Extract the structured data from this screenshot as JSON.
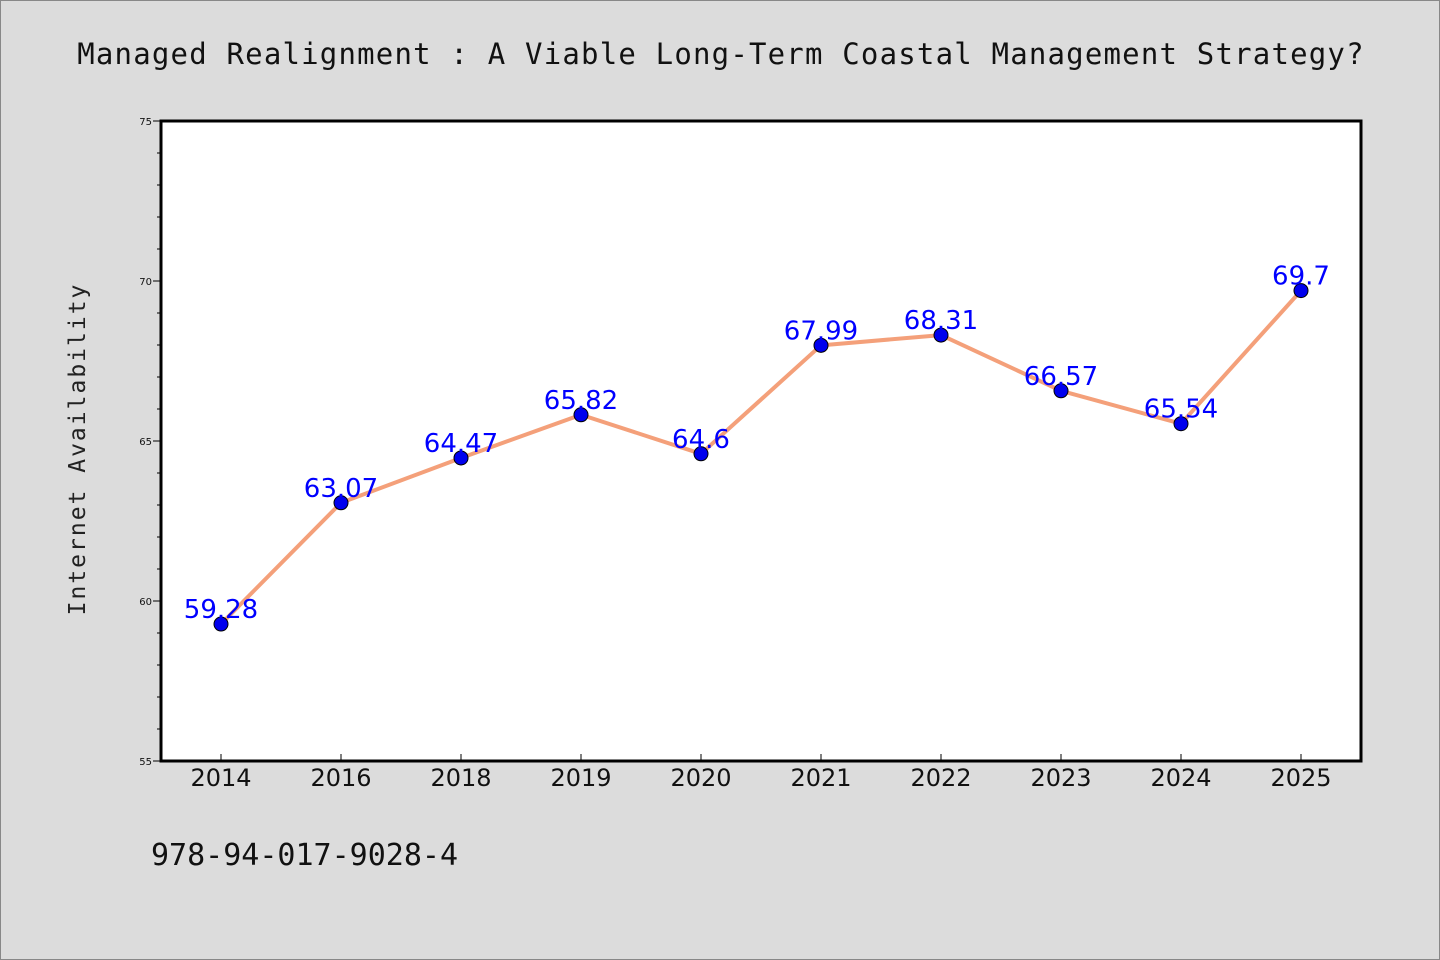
{
  "chart_data": {
    "type": "line",
    "title": "Managed Realignment : A Viable Long-Term Coastal Management Strategy?",
    "xlabel": "",
    "ylabel": "Internet Availability",
    "categories": [
      "2014",
      "2016",
      "2018",
      "2019",
      "2020",
      "2021",
      "2022",
      "2023",
      "2024",
      "2025"
    ],
    "series": [
      {
        "values": [
          59.28,
          63.07,
          64.47,
          65.82,
          64.6,
          67.99,
          68.31,
          66.57,
          65.54,
          69.7
        ],
        "labels": [
          "59.28",
          "63.07",
          "64.47",
          "65.82",
          "64.6",
          "67.99",
          "68.31",
          "66.57",
          "65.54",
          "69.7"
        ],
        "line_color": "#f4a07a",
        "marker_color": "#0000ee"
      }
    ],
    "ylim": [
      55,
      75
    ],
    "yticks": [
      "55",
      "60",
      "65",
      "70",
      "75"
    ],
    "grid": false,
    "label_color": "#0000ff"
  },
  "footnote": "978-94-017-9028-4",
  "colors": {
    "background": "#dcdcdc",
    "plot_area": "#ffffff",
    "line": "#f4a07a",
    "marker": "#0000ee",
    "data_labels": "#0000ff"
  }
}
